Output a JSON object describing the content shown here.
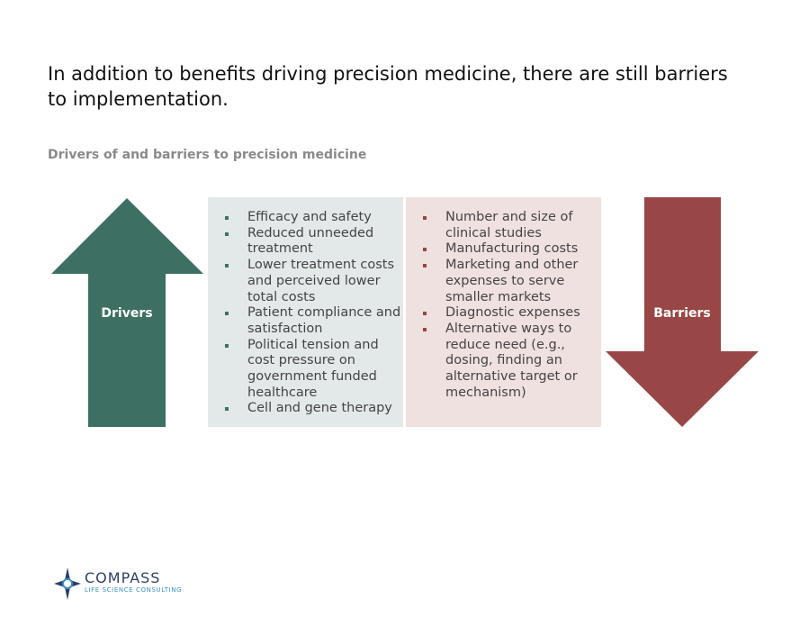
{
  "header": {
    "title": "In addition to benefits driving precision medicine, there are still barriers to implementation.",
    "subtitle": "Drivers of and barriers to precision medicine"
  },
  "drivers": {
    "label": "Drivers",
    "items": [
      "Efficacy and safety",
      "Reduced unneeded treatment",
      "Lower treatment costs and perceived lower total costs",
      "Patient compliance and satisfaction",
      "Political tension and cost pressure on government funded healthcare",
      "Cell and gene therapy"
    ]
  },
  "barriers": {
    "label": "Barriers",
    "items": [
      "Number and size of clinical studies",
      "Manufacturing costs",
      "Marketing and other expenses to serve smaller markets",
      "Diagnostic expenses",
      "Alternative ways to reduce need (e.g., dosing, finding an alternative target or mechanism)"
    ]
  },
  "logo": {
    "name": "COMPASS",
    "tagline": "LIFE SCIENCE CONSULTING"
  }
}
